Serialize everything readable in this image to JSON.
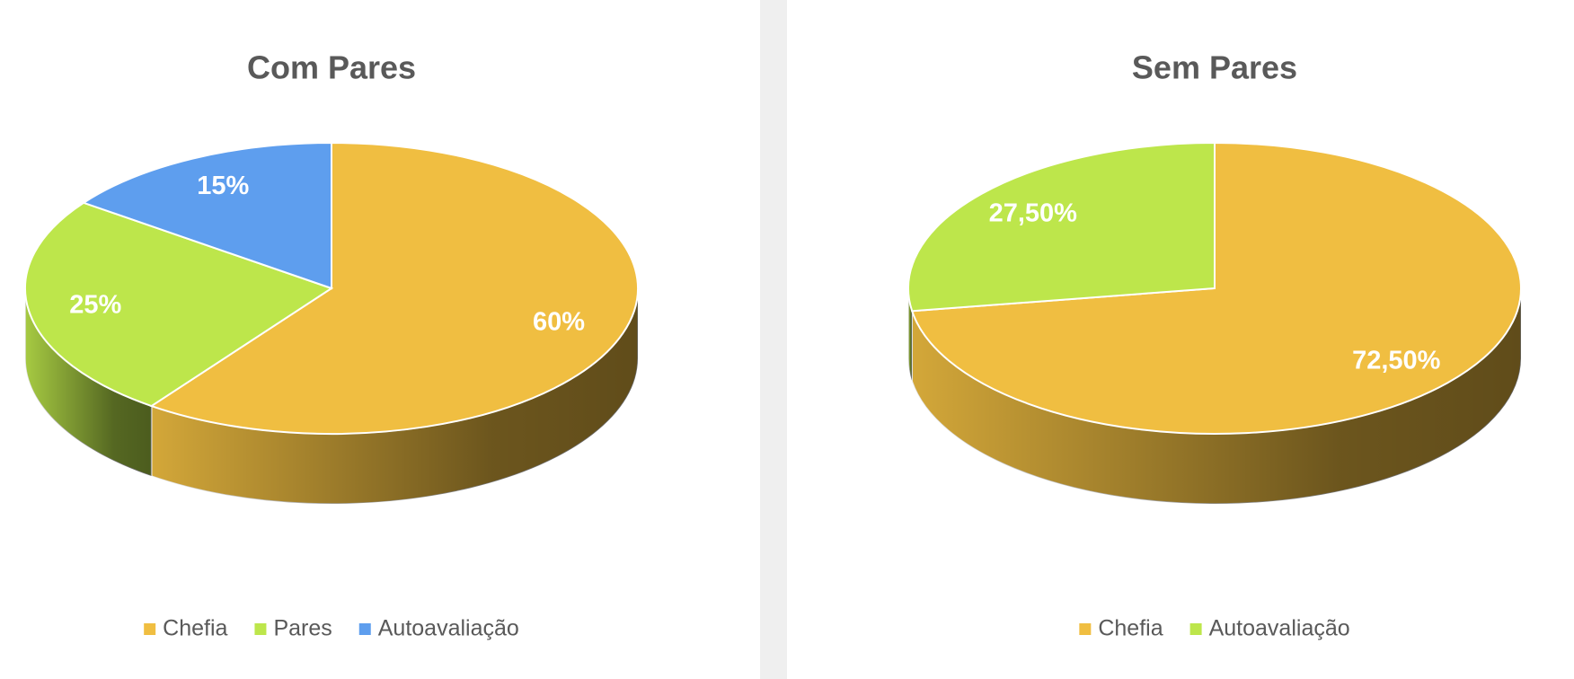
{
  "chart_data": [
    {
      "type": "pie",
      "title": "Com Pares",
      "categories": [
        "Chefia",
        "Pares",
        "Autoavaliação"
      ],
      "values": [
        60,
        25,
        15
      ],
      "value_labels": [
        "60%",
        "25%",
        "15%"
      ],
      "colors": [
        "#f0be41",
        "#bde64b",
        "#5e9eee"
      ]
    },
    {
      "type": "pie",
      "title": "Sem Pares",
      "categories": [
        "Chefia",
        "Autoavaliação"
      ],
      "values": [
        72.5,
        27.5
      ],
      "value_labels": [
        "72,50%",
        "27,50%"
      ],
      "colors": [
        "#f0be41",
        "#bde64b"
      ]
    }
  ]
}
